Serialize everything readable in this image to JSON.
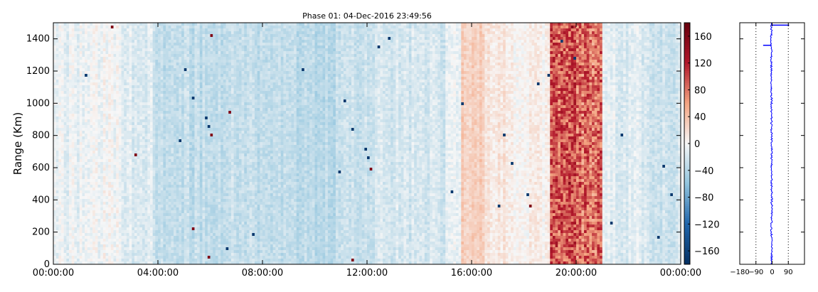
{
  "chart_data": [
    {
      "type": "heatmap",
      "title": "Phase 01: 04-Dec-2016 23:49:56",
      "xlabel": "",
      "ylabel": "Range (Km)",
      "x_ticks": [
        "00:00:00",
        "04:00:00",
        "08:00:00",
        "12:00:00",
        "16:00:00",
        "20:00:00",
        "00:00:00"
      ],
      "x_range_hours": [
        0,
        24
      ],
      "y_ticks": [
        0,
        200,
        400,
        600,
        800,
        1000,
        1200,
        1400
      ],
      "ylim": [
        0,
        1500
      ],
      "colormap": "RdBu_r",
      "colorbar": {
        "ticks": [
          160,
          120,
          80,
          40,
          0,
          -40,
          -80,
          -120,
          -160
        ],
        "range": [
          -180,
          180
        ],
        "colors": {
          "min": "#08306b",
          "mid": "#f7f7f7",
          "max": "#67000d"
        }
      },
      "column_mean_phase_profile": [
        {
          "hours": [
            0,
            1.5
          ],
          "value": -8
        },
        {
          "hours": [
            1.5,
            2.6
          ],
          "value": -4
        },
        {
          "hours": [
            2.6,
            3.8
          ],
          "value": -14
        },
        {
          "hours": [
            3.8,
            6.0
          ],
          "value": -32
        },
        {
          "hours": [
            6.0,
            8.0
          ],
          "value": -30
        },
        {
          "hours": [
            8.0,
            11.0
          ],
          "value": -34
        },
        {
          "hours": [
            11.0,
            12.5
          ],
          "value": -24
        },
        {
          "hours": [
            12.5,
            15.0
          ],
          "value": -20
        },
        {
          "hours": [
            15.0,
            15.6
          ],
          "value": -6
        },
        {
          "hours": [
            15.6,
            16.5
          ],
          "value": 30
        },
        {
          "hours": [
            16.5,
            17.5
          ],
          "value": 12
        },
        {
          "hours": [
            17.5,
            19.0
          ],
          "value": 5
        },
        {
          "hours": [
            19.0,
            20.0
          ],
          "value": 95
        },
        {
          "hours": [
            20.0,
            21.0
          ],
          "value": 85
        },
        {
          "hours": [
            21.0,
            22.5
          ],
          "value": -14
        },
        {
          "hours": [
            22.5,
            24.0
          ],
          "value": -22
        }
      ]
    },
    {
      "type": "line",
      "title": "",
      "xlabel": "",
      "ylabel": "",
      "x_ticks": [
        -180,
        -90,
        0,
        90
      ],
      "xlim": [
        -180,
        180
      ],
      "ylim": [
        0,
        1500
      ],
      "reference_lines_x": [
        -90,
        90
      ],
      "series_color": "#0000ff",
      "profile_points": [
        {
          "range": 0,
          "phase": -3
        },
        {
          "range": 100,
          "phase": -2
        },
        {
          "range": 200,
          "phase": -4
        },
        {
          "range": 300,
          "phase": -3
        },
        {
          "range": 400,
          "phase": -2
        },
        {
          "range": 500,
          "phase": -3
        },
        {
          "range": 600,
          "phase": -4
        },
        {
          "range": 700,
          "phase": -3
        },
        {
          "range": 800,
          "phase": -3
        },
        {
          "range": 900,
          "phase": -4
        },
        {
          "range": 1000,
          "phase": -3
        },
        {
          "range": 1100,
          "phase": -4
        },
        {
          "range": 1200,
          "phase": -5
        },
        {
          "range": 1300,
          "phase": -4
        },
        {
          "range": 1400,
          "phase": -5
        },
        {
          "range": 1500,
          "phase": -4
        }
      ],
      "notable_values": [
        {
          "range": 1485,
          "phase": 95
        },
        {
          "range": 1360,
          "phase": -50
        }
      ]
    }
  ]
}
